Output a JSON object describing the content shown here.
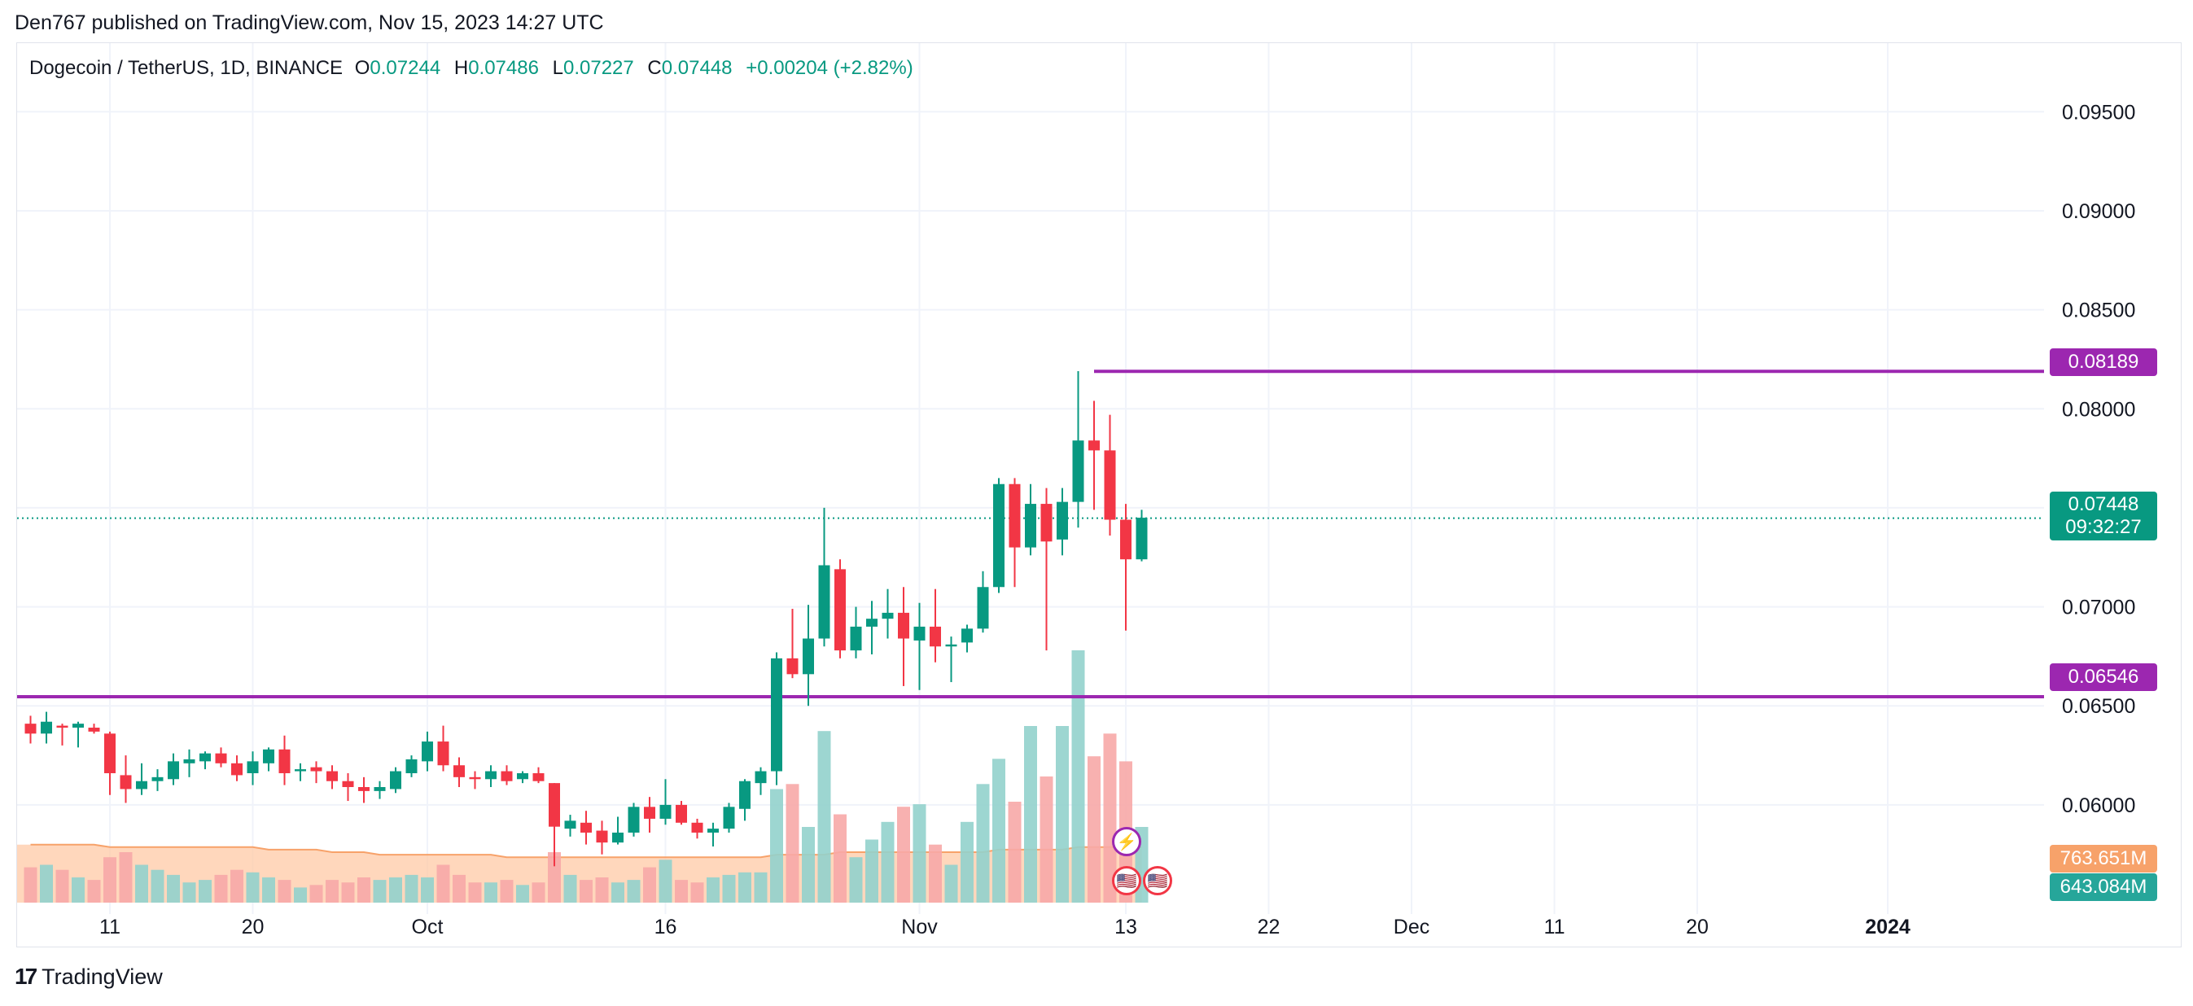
{
  "header": {
    "published": "Den767 published on TradingView.com, Nov 15, 2023 14:27 UTC"
  },
  "legend": {
    "symbol": "Dogecoin / TetherUS, 1D, BINANCE",
    "o_label": "O",
    "o": "0.07244",
    "h_label": "H",
    "h": "0.07486",
    "l_label": "L",
    "l": "0.07227",
    "c_label": "C",
    "c": "0.07448",
    "change": "+0.00204 (+2.82%)"
  },
  "price_axis": {
    "ticks": [
      "0.09500",
      "0.09000",
      "0.08500",
      "0.08000",
      "0.07500",
      "0.07000",
      "0.06500",
      "0.06000"
    ],
    "values": [
      0.095,
      0.09,
      0.085,
      0.08,
      0.075,
      0.07,
      0.065,
      0.06
    ]
  },
  "time_axis": {
    "labels": [
      {
        "text": "11",
        "bar": 5,
        "bold": false
      },
      {
        "text": "20",
        "bar": 14,
        "bold": false
      },
      {
        "text": "Oct",
        "bar": 25,
        "bold": false
      },
      {
        "text": "16",
        "bar": 40,
        "bold": false
      },
      {
        "text": "Nov",
        "bar": 56,
        "bold": false
      },
      {
        "text": "13",
        "bar": 69,
        "bold": false
      },
      {
        "text": "22",
        "bar": 78,
        "bold": false
      },
      {
        "text": "Dec",
        "bar": 87,
        "bold": false
      },
      {
        "text": "11",
        "bar": 96,
        "bold": false
      },
      {
        "text": "20",
        "bar": 105,
        "bold": false
      },
      {
        "text": "2024",
        "bar": 117,
        "bold": true
      }
    ]
  },
  "levels": {
    "resistance": {
      "value": 0.08189,
      "label": "0.08189",
      "start_bar": 67
    },
    "support": {
      "value": 0.06546,
      "label": "0.06546",
      "start_bar": 0
    },
    "current": {
      "value": 0.07448,
      "label": "0.07448",
      "countdown": "09:32:27"
    }
  },
  "volume": {
    "label_1": "763.651M",
    "label_2": "643.084M",
    "ma_label_color": "#f7a26a",
    "vol_label_color": "#26a69a"
  },
  "colors": {
    "up": "#089981",
    "down": "#f23645",
    "level": "#9c27b0",
    "vol_up": "#92d2cc",
    "vol_down": "#f7a9a7",
    "vol_ma": "#ffc9a5"
  },
  "chart_data": {
    "type": "candlestick",
    "title": "Dogecoin / TetherUS, 1D, BINANCE",
    "ylim": [
      0.0549,
      0.0983
    ],
    "x_range_bars": [
      -1,
      137
    ],
    "candles": [
      {
        "o": 0.0641,
        "h": 0.0645,
        "l": 0.0631,
        "c": 0.0636
      },
      {
        "o": 0.0636,
        "h": 0.0647,
        "l": 0.0631,
        "c": 0.0642
      },
      {
        "o": 0.064,
        "h": 0.0641,
        "l": 0.063,
        "c": 0.0639
      },
      {
        "o": 0.0639,
        "h": 0.0642,
        "l": 0.0629,
        "c": 0.0641
      },
      {
        "o": 0.0639,
        "h": 0.0641,
        "l": 0.0636,
        "c": 0.0637
      },
      {
        "o": 0.0636,
        "h": 0.0637,
        "l": 0.0605,
        "c": 0.0616
      },
      {
        "o": 0.0615,
        "h": 0.0625,
        "l": 0.0601,
        "c": 0.0608
      },
      {
        "o": 0.0608,
        "h": 0.0621,
        "l": 0.0605,
        "c": 0.0612
      },
      {
        "o": 0.0612,
        "h": 0.0618,
        "l": 0.0607,
        "c": 0.0614
      },
      {
        "o": 0.0613,
        "h": 0.0626,
        "l": 0.061,
        "c": 0.0622
      },
      {
        "o": 0.0621,
        "h": 0.0628,
        "l": 0.0614,
        "c": 0.0623
      },
      {
        "o": 0.0622,
        "h": 0.0627,
        "l": 0.0618,
        "c": 0.0626
      },
      {
        "o": 0.0626,
        "h": 0.0629,
        "l": 0.0619,
        "c": 0.0621
      },
      {
        "o": 0.0621,
        "h": 0.0625,
        "l": 0.0612,
        "c": 0.0615
      },
      {
        "o": 0.0616,
        "h": 0.0627,
        "l": 0.061,
        "c": 0.0622
      },
      {
        "o": 0.0621,
        "h": 0.0629,
        "l": 0.0617,
        "c": 0.0628
      },
      {
        "o": 0.0628,
        "h": 0.0635,
        "l": 0.061,
        "c": 0.0616
      },
      {
        "o": 0.0617,
        "h": 0.0621,
        "l": 0.0612,
        "c": 0.0618
      },
      {
        "o": 0.0619,
        "h": 0.0622,
        "l": 0.0611,
        "c": 0.0617
      },
      {
        "o": 0.0617,
        "h": 0.062,
        "l": 0.0608,
        "c": 0.0612
      },
      {
        "o": 0.0612,
        "h": 0.0616,
        "l": 0.0602,
        "c": 0.0609
      },
      {
        "o": 0.0609,
        "h": 0.0614,
        "l": 0.0601,
        "c": 0.0607
      },
      {
        "o": 0.0607,
        "h": 0.0612,
        "l": 0.0603,
        "c": 0.0609
      },
      {
        "o": 0.0608,
        "h": 0.0619,
        "l": 0.0606,
        "c": 0.0617
      },
      {
        "o": 0.0616,
        "h": 0.0625,
        "l": 0.0614,
        "c": 0.0623
      },
      {
        "o": 0.0622,
        "h": 0.0637,
        "l": 0.0617,
        "c": 0.0632
      },
      {
        "o": 0.0632,
        "h": 0.064,
        "l": 0.0617,
        "c": 0.062
      },
      {
        "o": 0.062,
        "h": 0.0624,
        "l": 0.0609,
        "c": 0.0614
      },
      {
        "o": 0.0614,
        "h": 0.0617,
        "l": 0.0608,
        "c": 0.0613
      },
      {
        "o": 0.0613,
        "h": 0.062,
        "l": 0.0609,
        "c": 0.0617
      },
      {
        "o": 0.0617,
        "h": 0.062,
        "l": 0.061,
        "c": 0.0612
      },
      {
        "o": 0.0613,
        "h": 0.0617,
        "l": 0.0611,
        "c": 0.0616
      },
      {
        "o": 0.0616,
        "h": 0.0619,
        "l": 0.0611,
        "c": 0.0612
      },
      {
        "o": 0.0611,
        "h": 0.0611,
        "l": 0.0569,
        "c": 0.0589
      },
      {
        "o": 0.0588,
        "h": 0.0595,
        "l": 0.0584,
        "c": 0.0592
      },
      {
        "o": 0.0591,
        "h": 0.0597,
        "l": 0.058,
        "c": 0.0586
      },
      {
        "o": 0.0587,
        "h": 0.0592,
        "l": 0.0575,
        "c": 0.0581
      },
      {
        "o": 0.0581,
        "h": 0.0594,
        "l": 0.058,
        "c": 0.0586
      },
      {
        "o": 0.0586,
        "h": 0.0601,
        "l": 0.0584,
        "c": 0.0599
      },
      {
        "o": 0.0599,
        "h": 0.0604,
        "l": 0.0586,
        "c": 0.0593
      },
      {
        "o": 0.0593,
        "h": 0.0613,
        "l": 0.059,
        "c": 0.06
      },
      {
        "o": 0.06,
        "h": 0.0602,
        "l": 0.059,
        "c": 0.0591
      },
      {
        "o": 0.0591,
        "h": 0.0593,
        "l": 0.0583,
        "c": 0.0586
      },
      {
        "o": 0.0586,
        "h": 0.0591,
        "l": 0.0579,
        "c": 0.0588
      },
      {
        "o": 0.0588,
        "h": 0.0601,
        "l": 0.0586,
        "c": 0.0599
      },
      {
        "o": 0.0598,
        "h": 0.0613,
        "l": 0.0592,
        "c": 0.0612
      },
      {
        "o": 0.0611,
        "h": 0.0619,
        "l": 0.0605,
        "c": 0.0617
      },
      {
        "o": 0.0617,
        "h": 0.0677,
        "l": 0.061,
        "c": 0.0674
      },
      {
        "o": 0.0674,
        "h": 0.0699,
        "l": 0.0664,
        "c": 0.0666
      },
      {
        "o": 0.0666,
        "h": 0.0701,
        "l": 0.065,
        "c": 0.0684
      },
      {
        "o": 0.0684,
        "h": 0.075,
        "l": 0.068,
        "c": 0.0721
      },
      {
        "o": 0.0719,
        "h": 0.0724,
        "l": 0.0674,
        "c": 0.0678
      },
      {
        "o": 0.0678,
        "h": 0.07,
        "l": 0.0674,
        "c": 0.069
      },
      {
        "o": 0.069,
        "h": 0.0703,
        "l": 0.0676,
        "c": 0.0694
      },
      {
        "o": 0.0694,
        "h": 0.0709,
        "l": 0.0684,
        "c": 0.0697
      },
      {
        "o": 0.0697,
        "h": 0.071,
        "l": 0.066,
        "c": 0.0684
      },
      {
        "o": 0.0683,
        "h": 0.0702,
        "l": 0.0658,
        "c": 0.069
      },
      {
        "o": 0.069,
        "h": 0.0709,
        "l": 0.0672,
        "c": 0.068
      },
      {
        "o": 0.068,
        "h": 0.0685,
        "l": 0.0662,
        "c": 0.0681
      },
      {
        "o": 0.0682,
        "h": 0.0691,
        "l": 0.0677,
        "c": 0.0689
      },
      {
        "o": 0.0689,
        "h": 0.0718,
        "l": 0.0687,
        "c": 0.071
      },
      {
        "o": 0.071,
        "h": 0.0765,
        "l": 0.0707,
        "c": 0.0762
      },
      {
        "o": 0.0762,
        "h": 0.0765,
        "l": 0.071,
        "c": 0.073
      },
      {
        "o": 0.073,
        "h": 0.0762,
        "l": 0.0726,
        "c": 0.0752
      },
      {
        "o": 0.0752,
        "h": 0.076,
        "l": 0.0678,
        "c": 0.0733
      },
      {
        "o": 0.0734,
        "h": 0.076,
        "l": 0.0726,
        "c": 0.0753
      },
      {
        "o": 0.0753,
        "h": 0.0819,
        "l": 0.074,
        "c": 0.0784
      },
      {
        "o": 0.0784,
        "h": 0.0804,
        "l": 0.0749,
        "c": 0.0779
      },
      {
        "o": 0.0779,
        "h": 0.0797,
        "l": 0.0736,
        "c": 0.0744
      },
      {
        "o": 0.0744,
        "h": 0.0752,
        "l": 0.0688,
        "c": 0.0724
      },
      {
        "o": 0.0724,
        "h": 0.0749,
        "l": 0.0723,
        "c": 0.0745
      }
    ],
    "volume_note": "Volume values in relative units (peak = 1.0)",
    "volumes": [
      0.14,
      0.15,
      0.13,
      0.1,
      0.09,
      0.18,
      0.2,
      0.15,
      0.13,
      0.11,
      0.08,
      0.09,
      0.11,
      0.13,
      0.12,
      0.1,
      0.09,
      0.06,
      0.07,
      0.09,
      0.08,
      0.1,
      0.09,
      0.1,
      0.11,
      0.1,
      0.15,
      0.11,
      0.08,
      0.08,
      0.09,
      0.07,
      0.08,
      0.2,
      0.11,
      0.09,
      0.1,
      0.08,
      0.09,
      0.14,
      0.17,
      0.09,
      0.08,
      0.1,
      0.11,
      0.12,
      0.12,
      0.45,
      0.47,
      0.3,
      0.68,
      0.35,
      0.18,
      0.25,
      0.32,
      0.38,
      0.39,
      0.23,
      0.15,
      0.32,
      0.47,
      0.57,
      0.4,
      0.7,
      0.5,
      0.7,
      1.0,
      0.58,
      0.67,
      0.56,
      0.3
    ],
    "volume_ma": [
      0.23,
      0.23,
      0.23,
      0.23,
      0.23,
      0.22,
      0.22,
      0.22,
      0.22,
      0.22,
      0.22,
      0.22,
      0.22,
      0.22,
      0.22,
      0.21,
      0.21,
      0.21,
      0.21,
      0.2,
      0.2,
      0.2,
      0.19,
      0.19,
      0.19,
      0.19,
      0.19,
      0.19,
      0.19,
      0.19,
      0.18,
      0.18,
      0.18,
      0.18,
      0.18,
      0.18,
      0.18,
      0.18,
      0.18,
      0.18,
      0.18,
      0.18,
      0.18,
      0.18,
      0.18,
      0.18,
      0.18,
      0.19,
      0.19,
      0.19,
      0.19,
      0.2,
      0.2,
      0.2,
      0.2,
      0.2,
      0.2,
      0.2,
      0.2,
      0.2,
      0.2,
      0.21,
      0.21,
      0.21,
      0.21,
      0.21,
      0.22,
      0.22,
      0.22,
      0.22,
      0.22
    ]
  },
  "footer": {
    "brand": "TradingView",
    "logo_glyph": "17"
  },
  "events": {
    "lightning_glyph": "⚡",
    "flag_glyph": "🇺🇸"
  }
}
